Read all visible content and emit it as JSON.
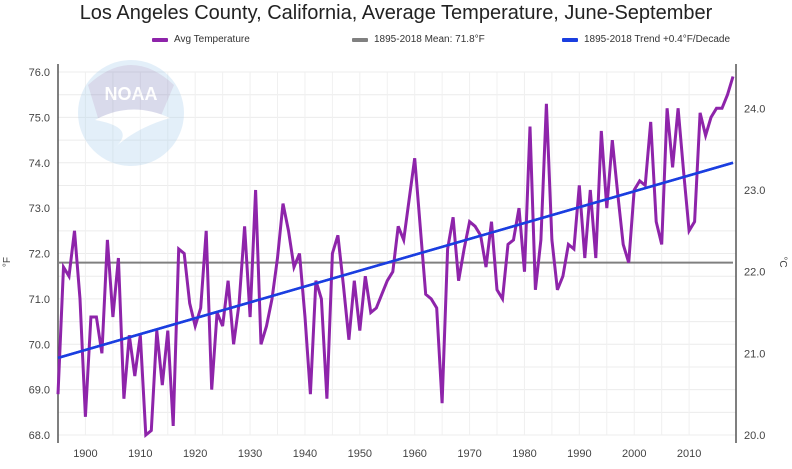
{
  "chart_data": {
    "type": "line",
    "title": "Los Angeles County, California, Average Temperature, June-September",
    "xlabel": "",
    "ylabel": "°F",
    "ylabel_right": "°C",
    "xlim": [
      1895,
      2018
    ],
    "ylim": [
      68.0,
      76.0
    ],
    "ylim_right": [
      20.0,
      24.44
    ],
    "grid": true,
    "legend_position": "top",
    "x_ticks": [
      "1900",
      "1910",
      "1920",
      "1930",
      "1940",
      "1950",
      "1960",
      "1970",
      "1980",
      "1990",
      "2000",
      "2010"
    ],
    "y_ticks": [
      "68.0",
      "69.0",
      "70.0",
      "71.0",
      "72.0",
      "73.0",
      "74.0",
      "75.0",
      "76.0"
    ],
    "y_ticks_right": [
      "20.0",
      "21.0",
      "22.0",
      "23.0",
      "24.0"
    ],
    "watermark": "NOAA",
    "series": [
      {
        "name": "Avg Temperature",
        "color": "#8e24aa",
        "x": [
          1895,
          1896,
          1897,
          1898,
          1899,
          1900,
          1901,
          1902,
          1903,
          1904,
          1905,
          1906,
          1907,
          1908,
          1909,
          1910,
          1911,
          1912,
          1913,
          1914,
          1915,
          1916,
          1917,
          1918,
          1919,
          1920,
          1921,
          1922,
          1923,
          1924,
          1925,
          1926,
          1927,
          1928,
          1929,
          1930,
          1931,
          1932,
          1933,
          1934,
          1935,
          1936,
          1937,
          1938,
          1939,
          1940,
          1941,
          1942,
          1943,
          1944,
          1945,
          1946,
          1947,
          1948,
          1949,
          1950,
          1951,
          1952,
          1953,
          1954,
          1955,
          1956,
          1957,
          1958,
          1959,
          1960,
          1961,
          1962,
          1963,
          1964,
          1965,
          1966,
          1967,
          1968,
          1969,
          1970,
          1971,
          1972,
          1973,
          1974,
          1975,
          1976,
          1977,
          1978,
          1979,
          1980,
          1981,
          1982,
          1983,
          1984,
          1985,
          1986,
          1987,
          1988,
          1989,
          1990,
          1991,
          1992,
          1993,
          1994,
          1995,
          1996,
          1997,
          1998,
          1999,
          2000,
          2001,
          2002,
          2003,
          2004,
          2005,
          2006,
          2007,
          2008,
          2009,
          2010,
          2011,
          2012,
          2013,
          2014,
          2015,
          2016,
          2017,
          2018
        ],
        "values": [
          68.9,
          71.7,
          71.5,
          72.5,
          71.0,
          68.4,
          70.6,
          70.6,
          69.8,
          72.3,
          70.6,
          71.9,
          68.8,
          70.2,
          69.3,
          70.2,
          68.0,
          68.1,
          70.3,
          69.1,
          70.3,
          68.2,
          72.1,
          72.0,
          70.9,
          70.4,
          70.8,
          72.5,
          69.0,
          70.7,
          70.4,
          71.4,
          70.0,
          70.9,
          72.6,
          70.6,
          73.4,
          70.0,
          70.4,
          71.0,
          71.9,
          73.1,
          72.5,
          71.7,
          72.0,
          70.6,
          68.9,
          71.4,
          71.0,
          68.8,
          72.0,
          72.4,
          71.3,
          70.1,
          71.4,
          70.3,
          71.5,
          70.7,
          70.8,
          71.1,
          71.4,
          71.6,
          72.6,
          72.3,
          73.2,
          74.1,
          72.6,
          71.1,
          71.0,
          70.8,
          68.7,
          72.1,
          72.8,
          71.4,
          72.1,
          72.7,
          72.6,
          72.4,
          71.7,
          72.7,
          71.2,
          71.0,
          72.2,
          72.3,
          73.0,
          71.6,
          74.8,
          71.2,
          72.3,
          75.3,
          72.3,
          71.2,
          71.5,
          72.2,
          72.1,
          73.5,
          71.9,
          73.4,
          71.9,
          74.7,
          73.0,
          74.5,
          73.3,
          72.2,
          71.8,
          73.4,
          73.6,
          73.5,
          74.9,
          72.7,
          72.2,
          75.2,
          73.9,
          75.2,
          73.8,
          72.5,
          72.7,
          75.1,
          74.6,
          75.0,
          75.2,
          75.2,
          75.5,
          75.9
        ]
      },
      {
        "name": "1895-2018 Mean: 71.8°F",
        "color": "#808080",
        "x": [
          1895,
          2018
        ],
        "values": [
          71.8,
          71.8
        ]
      },
      {
        "name": "1895-2018 Trend +0.4°F/Decade",
        "color": "#1a3ee0",
        "x": [
          1895,
          2018
        ],
        "values": [
          69.7,
          74.0
        ]
      }
    ]
  }
}
